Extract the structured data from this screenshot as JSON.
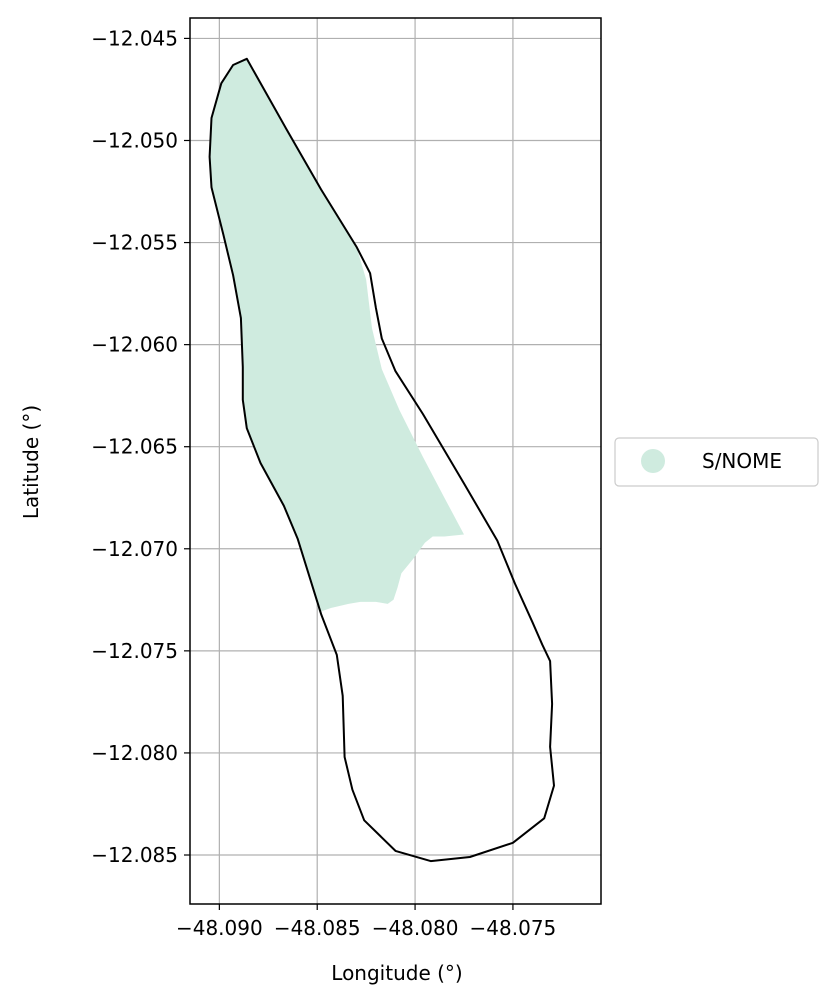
{
  "chart_data": {
    "type": "map",
    "xlabel": "Longitude (°)",
    "ylabel": "Latitude (°)",
    "xlim": [
      -48.0915,
      -48.0705
    ],
    "ylim": [
      -12.0874,
      -12.044
    ],
    "xticks": [
      -48.09,
      -48.085,
      -48.08,
      -48.075
    ],
    "xtick_labels": [
      "−48.090",
      "−48.085",
      "−48.080",
      "−48.075"
    ],
    "yticks": [
      -12.045,
      -12.05,
      -12.055,
      -12.06,
      -12.065,
      -12.07,
      -12.075,
      -12.08,
      -12.085
    ],
    "ytick_labels": [
      "−12.045",
      "−12.050",
      "−12.055",
      "−12.060",
      "−12.065",
      "−12.070",
      "−12.075",
      "−12.080",
      "−12.085"
    ],
    "grid": true,
    "legend_placement": "center-right-outside",
    "legend": [
      {
        "label": "S/NOME",
        "color": "#cfebdf"
      }
    ],
    "colors": {
      "fill": "#cfebdf",
      "outline": "#000000",
      "grid": "#b0b0b0"
    },
    "filled_region": [
      [
        -48.0886,
        -12.046
      ],
      [
        -48.0893,
        -12.0463
      ],
      [
        -48.0899,
        -12.0472
      ],
      [
        -48.0904,
        -12.0489
      ],
      [
        -48.0905,
        -12.0508
      ],
      [
        -48.0904,
        -12.0523
      ],
      [
        -48.0898,
        -12.0546
      ],
      [
        -48.0893,
        -12.0566
      ],
      [
        -48.0889,
        -12.0587
      ],
      [
        -48.0888,
        -12.0611
      ],
      [
        -48.0888,
        -12.0627
      ],
      [
        -48.0886,
        -12.0641
      ],
      [
        -48.0879,
        -12.0658
      ],
      [
        -48.0867,
        -12.0679
      ],
      [
        -48.086,
        -12.0695
      ],
      [
        -48.0849,
        -12.0731
      ],
      [
        -48.0843,
        -12.0729
      ],
      [
        -48.0834,
        -12.0727
      ],
      [
        -48.0828,
        -12.0726
      ],
      [
        -48.082,
        -12.0726
      ],
      [
        -48.0814,
        -12.0727
      ],
      [
        -48.0811,
        -12.0725
      ],
      [
        -48.0809,
        -12.0719
      ],
      [
        -48.0807,
        -12.0712
      ],
      [
        -48.0801,
        -12.0705
      ],
      [
        -48.0795,
        -12.0697
      ],
      [
        -48.0791,
        -12.0694
      ],
      [
        -48.0785,
        -12.0694
      ],
      [
        -48.0775,
        -12.0693
      ],
      [
        -48.0785,
        -12.0675
      ],
      [
        -48.0796,
        -12.0655
      ],
      [
        -48.0808,
        -12.0632
      ],
      [
        -48.0817,
        -12.0612
      ],
      [
        -48.0822,
        -12.0592
      ],
      [
        -48.0825,
        -12.0568
      ],
      [
        -48.083,
        -12.0552
      ],
      [
        -48.0848,
        -12.0524
      ],
      [
        -48.0866,
        -12.0494
      ],
      [
        -48.0886,
        -12.046
      ]
    ],
    "outline": [
      [
        -48.0886,
        -12.046
      ],
      [
        -48.0893,
        -12.0463
      ],
      [
        -48.0899,
        -12.0472
      ],
      [
        -48.0904,
        -12.0489
      ],
      [
        -48.0905,
        -12.0508
      ],
      [
        -48.0904,
        -12.0523
      ],
      [
        -48.0898,
        -12.0546
      ],
      [
        -48.0893,
        -12.0566
      ],
      [
        -48.0889,
        -12.0587
      ],
      [
        -48.0888,
        -12.0611
      ],
      [
        -48.0888,
        -12.0627
      ],
      [
        -48.0886,
        -12.0641
      ],
      [
        -48.0879,
        -12.0658
      ],
      [
        -48.0867,
        -12.0679
      ],
      [
        -48.086,
        -12.0695
      ],
      [
        -48.0848,
        -12.0732
      ],
      [
        -48.084,
        -12.0752
      ],
      [
        -48.0837,
        -12.0772
      ],
      [
        -48.0836,
        -12.0802
      ],
      [
        -48.0832,
        -12.0818
      ],
      [
        -48.0826,
        -12.0833
      ],
      [
        -48.081,
        -12.0848
      ],
      [
        -48.0792,
        -12.0853
      ],
      [
        -48.0772,
        -12.0851
      ],
      [
        -48.075,
        -12.0844
      ],
      [
        -48.0734,
        -12.0832
      ],
      [
        -48.0729,
        -12.0816
      ],
      [
        -48.0731,
        -12.0797
      ],
      [
        -48.073,
        -12.0776
      ],
      [
        -48.0731,
        -12.0755
      ],
      [
        -48.0735,
        -12.0747
      ],
      [
        -48.074,
        -12.0736
      ],
      [
        -48.0749,
        -12.0717
      ],
      [
        -48.0758,
        -12.0696
      ],
      [
        -48.0775,
        -12.0668
      ],
      [
        -48.0796,
        -12.0634
      ],
      [
        -48.081,
        -12.0613
      ],
      [
        -48.0817,
        -12.0597
      ],
      [
        -48.082,
        -12.0582
      ],
      [
        -48.0823,
        -12.0565
      ],
      [
        -48.083,
        -12.0552
      ],
      [
        -48.0848,
        -12.0524
      ],
      [
        -48.0866,
        -12.0494
      ],
      [
        -48.0886,
        -12.046
      ]
    ]
  }
}
